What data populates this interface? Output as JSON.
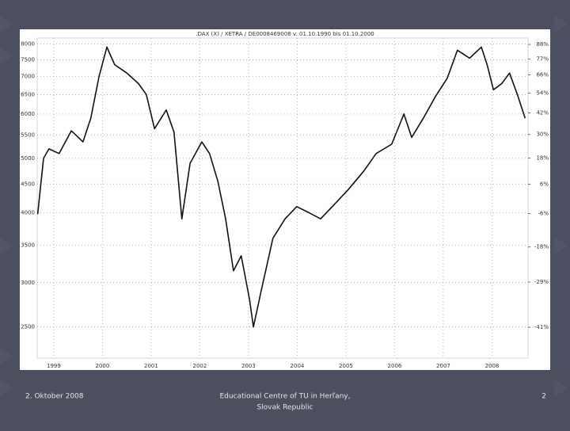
{
  "chart_data": {
    "type": "line",
    "title": ".DAX (X) / XETRA / DE0008469008 v. 01.10.1990 bis 01.10.2000",
    "x": [
      1998.67,
      1998.79,
      1998.9,
      1999.11,
      1999.36,
      1999.6,
      1999.76,
      1999.93,
      2000.09,
      2000.25,
      2000.5,
      2000.74,
      2000.9,
      2001.07,
      2001.31,
      2001.47,
      2001.63,
      2001.8,
      2002.04,
      2002.2,
      2002.37,
      2002.53,
      2002.69,
      2002.85,
      2003.02,
      2003.1,
      2003.26,
      2003.5,
      2003.75,
      2003.99,
      2004.24,
      2004.48,
      2004.72,
      2005.05,
      2005.37,
      2005.62,
      2005.94,
      2006.19,
      2006.35,
      2006.59,
      2006.84,
      2007.08,
      2007.29,
      2007.54,
      2007.78,
      2007.9,
      2008.03,
      2008.2,
      2008.36,
      2008.52,
      2008.68
    ],
    "series": [
      {
        "color": "#111111",
        "values": [
          3975,
          5000,
          5200,
          5100,
          5600,
          5350,
          5900,
          7000,
          7900,
          7350,
          7100,
          6800,
          6500,
          5650,
          6100,
          5570,
          3900,
          4900,
          5350,
          5100,
          4550,
          3900,
          3150,
          3350,
          2800,
          2500,
          2900,
          3600,
          3900,
          4100,
          4000,
          3900,
          4100,
          4400,
          4750,
          5100,
          5300,
          6000,
          5450,
          5900,
          6450,
          6950,
          7800,
          7550,
          7900,
          7350,
          6630,
          6800,
          7100,
          6500,
          5900
        ]
      }
    ],
    "xlim": [
      1998.66,
      2008.74
    ],
    "xticks": [
      1999,
      2000,
      2001,
      2002,
      2003,
      2004,
      2005,
      2006,
      2007,
      2008
    ],
    "ylim": [
      2200,
      8200
    ],
    "yticks": [
      2500,
      3000,
      3500,
      4000,
      4500,
      5000,
      5500,
      6000,
      6500,
      7000,
      7500,
      8000
    ],
    "y2lim": [
      -48,
      93
    ],
    "y2ticks": [
      {
        "value": -41,
        "label": "-41%"
      },
      {
        "value": -29,
        "label": "-29%"
      },
      {
        "value": -18,
        "label": "-18%"
      },
      {
        "value": -6,
        "label": "-6%"
      },
      {
        "value": 6,
        "label": "6%"
      },
      {
        "value": 18,
        "label": "18%"
      },
      {
        "value": 30,
        "label": "30%"
      },
      {
        "value": 42,
        "label": "42%"
      },
      {
        "value": 54,
        "label": "54%"
      },
      {
        "value": 66,
        "label": "66%"
      },
      {
        "value": 77,
        "label": "77%"
      },
      {
        "value": 88,
        "label": "88%"
      }
    ],
    "log_y": true,
    "grid": true
  },
  "footer": {
    "date": "2. Oktober 2008",
    "center_line1": "Educational Centre of TU in Herľany,",
    "center_line2": "Slovak Republic",
    "page": "2"
  }
}
